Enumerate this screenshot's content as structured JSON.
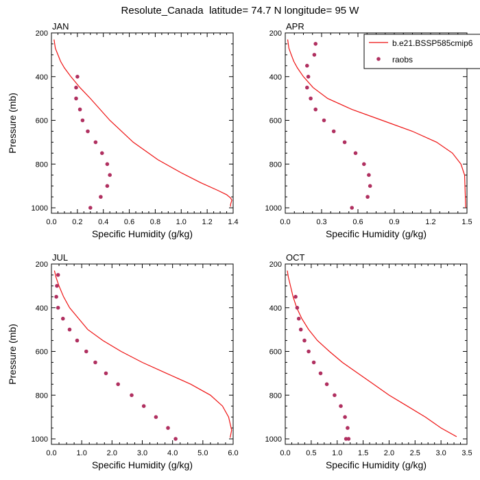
{
  "figure_title": "Resolute_Canada  latitude= 74.7 N longitude= 95 W",
  "colors": {
    "model": "#ee1111",
    "obs": "#b03060",
    "axis": "#000000"
  },
  "legend": {
    "model_label": "b.e21.BSSP585cmip6",
    "obs_label": "raobs",
    "placement": "top-right of APR panel"
  },
  "chart_data": [
    {
      "type": "line",
      "panel": "JAN",
      "title": "JAN",
      "xlabel": "Specific Humidity (g/kg)",
      "ylabel": "Pressure (mb)",
      "xlim": [
        0,
        1.4
      ],
      "ylim": [
        1025,
        200
      ],
      "xticks": [
        0,
        0.2,
        0.4,
        0.6,
        0.8,
        1.0,
        1.2,
        1.4
      ],
      "xtick_labels": [
        "0.0",
        "0.2",
        "0.4",
        "0.6",
        "0.8",
        "1.0",
        "1.2",
        "1.4"
      ],
      "yticks": [
        200,
        400,
        600,
        800,
        1000
      ],
      "ytick_labels": [
        "200",
        "400",
        "600",
        "800",
        "1000"
      ],
      "series": [
        {
          "name": "b.e21.BSSP585cmip6",
          "kind": "line",
          "x": [
            0.02,
            0.03,
            0.05,
            0.07,
            0.1,
            0.15,
            0.22,
            0.3,
            0.45,
            0.63,
            0.82,
            1.0,
            1.15,
            1.28,
            1.35,
            1.38,
            1.39,
            1.38,
            1.38
          ],
          "y": [
            230,
            270,
            300,
            330,
            360,
            400,
            450,
            500,
            600,
            700,
            780,
            840,
            885,
            920,
            940,
            955,
            965,
            985,
            995
          ]
        },
        {
          "name": "raobs",
          "kind": "scatter",
          "x": [
            0.2,
            0.19,
            0.19,
            0.22,
            0.24,
            0.28,
            0.34,
            0.39,
            0.43,
            0.45,
            0.43,
            0.38,
            0.3
          ],
          "y": [
            400,
            450,
            500,
            550,
            600,
            650,
            700,
            750,
            800,
            850,
            900,
            950,
            1000
          ]
        }
      ]
    },
    {
      "type": "line",
      "panel": "APR",
      "title": "APR",
      "xlabel": "Specific Humidity (g/kg)",
      "ylabel": "",
      "xlim": [
        0,
        1.5
      ],
      "ylim": [
        1025,
        200
      ],
      "xticks": [
        0,
        0.3,
        0.6,
        0.9,
        1.2,
        1.5
      ],
      "xtick_labels": [
        "0.0",
        "0.3",
        "0.6",
        "0.9",
        "1.2",
        "1.5"
      ],
      "yticks": [
        200,
        400,
        600,
        800,
        1000
      ],
      "ytick_labels": [
        "200",
        "400",
        "600",
        "800",
        "1000"
      ],
      "series": [
        {
          "name": "b.e21.BSSP585cmip6",
          "kind": "line",
          "x": [
            0.02,
            0.03,
            0.05,
            0.07,
            0.1,
            0.15,
            0.23,
            0.35,
            0.55,
            0.8,
            1.05,
            1.25,
            1.38,
            1.45,
            1.48,
            1.49
          ],
          "y": [
            230,
            270,
            300,
            330,
            360,
            400,
            450,
            500,
            550,
            600,
            650,
            700,
            750,
            800,
            850,
            1000
          ]
        },
        {
          "name": "raobs",
          "kind": "scatter",
          "x": [
            0.25,
            0.24,
            0.18,
            0.19,
            0.18,
            0.21,
            0.25,
            0.32,
            0.4,
            0.49,
            0.58,
            0.65,
            0.69,
            0.7,
            0.68,
            0.55
          ],
          "y": [
            250,
            300,
            350,
            400,
            450,
            500,
            550,
            600,
            650,
            700,
            750,
            800,
            850,
            900,
            950,
            1000
          ]
        }
      ]
    },
    {
      "type": "line",
      "panel": "JUL",
      "title": "JUL",
      "xlabel": "Specific Humidity (g/kg)",
      "ylabel": "Pressure (mb)",
      "xlim": [
        0,
        6.0
      ],
      "ylim": [
        1025,
        200
      ],
      "xticks": [
        0,
        1,
        2,
        3,
        4,
        5,
        6
      ],
      "xtick_labels": [
        "0.0",
        "1.0",
        "2.0",
        "3.0",
        "4.0",
        "5.0",
        "6.0"
      ],
      "yticks": [
        200,
        400,
        600,
        800,
        1000
      ],
      "ytick_labels": [
        "200",
        "400",
        "600",
        "800",
        "1000"
      ],
      "series": [
        {
          "name": "b.e21.BSSP585cmip6",
          "kind": "line",
          "x": [
            0.1,
            0.15,
            0.25,
            0.4,
            0.6,
            0.9,
            1.2,
            1.7,
            2.3,
            3.0,
            3.8,
            4.6,
            5.25,
            5.65,
            5.85,
            5.95,
            5.9
          ],
          "y": [
            230,
            260,
            300,
            350,
            400,
            450,
            500,
            550,
            600,
            650,
            700,
            750,
            800,
            850,
            900,
            960,
            995
          ]
        },
        {
          "name": "raobs",
          "kind": "scatter",
          "x": [
            0.22,
            0.18,
            0.16,
            0.22,
            0.38,
            0.6,
            0.85,
            1.15,
            1.45,
            1.8,
            2.2,
            2.65,
            3.05,
            3.45,
            3.85,
            4.1
          ],
          "y": [
            250,
            300,
            350,
            400,
            450,
            500,
            550,
            600,
            650,
            700,
            750,
            800,
            850,
            900,
            950,
            1000
          ]
        }
      ]
    },
    {
      "type": "line",
      "panel": "OCT",
      "title": "OCT",
      "xlabel": "Specific Humidity (g/kg)",
      "ylabel": "",
      "xlim": [
        0,
        3.5
      ],
      "ylim": [
        1025,
        200
      ],
      "xticks": [
        0,
        0.5,
        1.0,
        1.5,
        2.0,
        2.5,
        3.0,
        3.5
      ],
      "xtick_labels": [
        "0.0",
        "0.5",
        "1.0",
        "1.5",
        "2.0",
        "2.5",
        "3.0",
        "3.5"
      ],
      "yticks": [
        200,
        400,
        600,
        800,
        1000
      ],
      "ytick_labels": [
        "200",
        "400",
        "600",
        "800",
        "1000"
      ],
      "series": [
        {
          "name": "b.e21.BSSP585cmip6",
          "kind": "line",
          "x": [
            0.04,
            0.06,
            0.1,
            0.15,
            0.22,
            0.32,
            0.45,
            0.62,
            0.85,
            1.1,
            1.4,
            1.7,
            2.0,
            2.35,
            2.7,
            3.0,
            3.3
          ],
          "y": [
            230,
            260,
            300,
            350,
            400,
            450,
            500,
            550,
            600,
            650,
            700,
            750,
            800,
            850,
            900,
            950,
            990
          ]
        },
        {
          "name": "raobs",
          "kind": "scatter",
          "x": [
            0.2,
            0.23,
            0.26,
            0.3,
            0.37,
            0.45,
            0.55,
            0.68,
            0.8,
            0.95,
            1.07,
            1.15,
            1.2,
            1.22,
            1.17
          ],
          "y": [
            350,
            400,
            450,
            500,
            550,
            600,
            650,
            700,
            750,
            800,
            850,
            900,
            950,
            1000,
            1000
          ]
        }
      ]
    }
  ]
}
